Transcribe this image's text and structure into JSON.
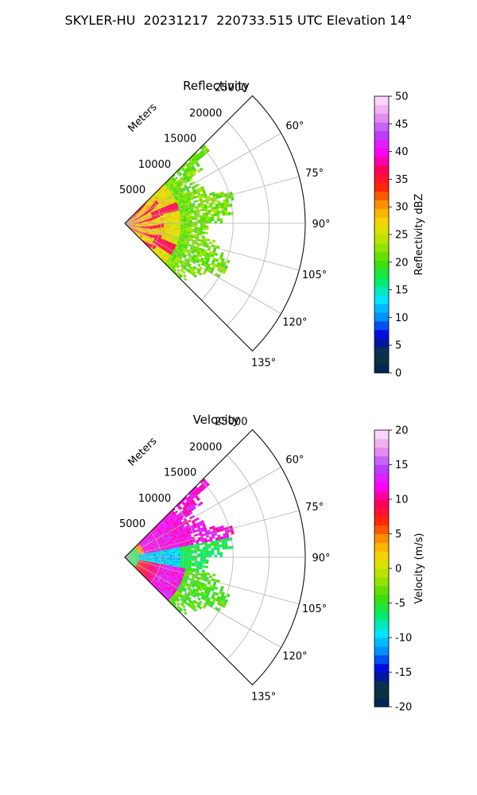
{
  "figure": {
    "title": "SKYLER-HU  20231217  220733.515 UTC Elevation 14°"
  },
  "chart_data": [
    {
      "type": "heatmap",
      "projection": "polar-sector",
      "title": "Reflectivity",
      "radial_label": "Meters",
      "radial_ticks": [
        5000,
        10000,
        15000,
        20000,
        25000
      ],
      "rmax": 25000,
      "angle_ticks_deg": [
        60,
        75,
        90,
        105,
        120,
        135
      ],
      "angle_tick_labels": [
        "60°",
        "75°",
        "90°",
        "105°",
        "120°",
        "135°"
      ],
      "theta_range_deg": [
        45,
        135
      ],
      "grid": true,
      "data_extent_m": 15500,
      "colorbar": {
        "label": "Reflectivity dBZ",
        "min": 0,
        "max": 50,
        "ticks": [
          0,
          5,
          10,
          15,
          20,
          25,
          30,
          35,
          40,
          45,
          50
        ],
        "colormap": [
          "#002060",
          "#0a3a35",
          "#0000dd",
          "#008cff",
          "#00e5ff",
          "#00ee66",
          "#44dd00",
          "#a6e500",
          "#f0e000",
          "#ffa000",
          "#ff2a00",
          "#ff0055",
          "#ff00ff",
          "#b344ff",
          "#ee99ee",
          "#ffe8ff"
        ]
      },
      "description_of_field": {
        "near_range_dbz": [
          25,
          35
        ],
        "far_range_dbz": [
          18,
          24
        ],
        "bands_dbz": [
          33,
          40
        ]
      }
    },
    {
      "type": "heatmap",
      "projection": "polar-sector",
      "title": "Velocity",
      "radial_label": "Meters",
      "radial_ticks": [
        5000,
        10000,
        15000,
        20000,
        25000
      ],
      "rmax": 25000,
      "angle_ticks_deg": [
        60,
        75,
        90,
        105,
        120,
        135
      ],
      "angle_tick_labels": [
        "60°",
        "75°",
        "90°",
        "105°",
        "120°",
        "135°"
      ],
      "theta_range_deg": [
        45,
        135
      ],
      "grid": true,
      "data_extent_m": 15500,
      "colorbar": {
        "label": "Velocity (m/s)",
        "min": -20,
        "max": 20,
        "ticks": [
          -20,
          -15,
          -10,
          -5,
          0,
          5,
          10,
          15,
          20
        ],
        "colormap": [
          "#002060",
          "#0a3a35",
          "#0000dd",
          "#008cff",
          "#00e5ff",
          "#00ee66",
          "#44dd00",
          "#a6e500",
          "#f0e000",
          "#ffa000",
          "#ff2a00",
          "#ff0055",
          "#ff00ff",
          "#b344ff",
          "#ee99ee",
          "#ffe8ff"
        ]
      },
      "description_of_field": {
        "north_sector_ms": [
          8,
          15
        ],
        "center_ms": [
          -12,
          -8
        ],
        "south_sector_ms": [
          10,
          15
        ],
        "outer_ms": [
          -6,
          -2
        ]
      }
    }
  ]
}
